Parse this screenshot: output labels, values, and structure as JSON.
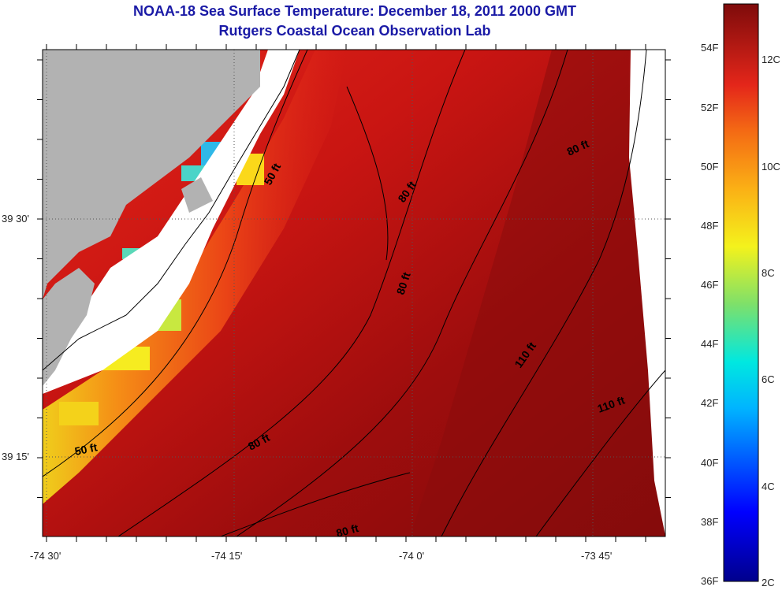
{
  "title": "NOAA-18 Sea Surface Temperature:  December 18, 2011 2000 GMT",
  "subtitle": "Rutgers Coastal Ocean Observation Lab",
  "lat_labels": [
    "39 30'",
    "39 15'"
  ],
  "lon_labels": [
    "-74 30'",
    "-74 15'",
    "-74 0'",
    "-73 45'"
  ],
  "depth_labels": [
    "50 ft",
    "50 ft",
    "80 ft",
    "80 ft",
    "80 ft",
    "80 ft",
    "80 ft",
    "110 ft",
    "110 ft"
  ],
  "colorbar": {
    "f_labels": [
      "54F",
      "52F",
      "50F",
      "48F",
      "46F",
      "44F",
      "42F",
      "40F",
      "38F",
      "36F"
    ],
    "c_labels": [
      "12C",
      "10C",
      "8C",
      "6C",
      "4C",
      "2C"
    ],
    "range_f": [
      36,
      55.5
    ]
  },
  "colors": {
    "land": "#b2b2b2",
    "title": "#1a1aa6"
  }
}
